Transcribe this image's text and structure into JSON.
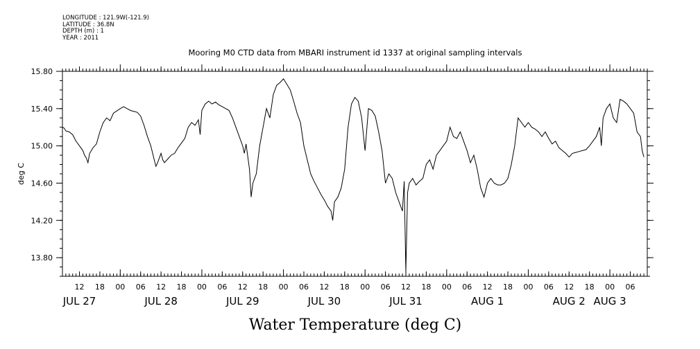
{
  "header": {
    "longitude": "LONGITUDE : 121.9W(-121.9)",
    "latitude": "LATITUDE : 36.8N",
    "depth": "DEPTH (m) : 1",
    "year": "YEAR : 2011"
  },
  "chart_data": {
    "type": "line",
    "title": "Mooring M0 CTD data from MBARI instrument id 1337 at original sampling intervals",
    "xlabel": "Water Temperature (deg C)",
    "ylabel": "deg C",
    "xlim": [
      "2011-07-27T07:00",
      "2011-08-03T11:00"
    ],
    "ylim": [
      13.6,
      15.8
    ],
    "y_ticks": [
      13.8,
      14.2,
      14.6,
      15.0,
      15.4,
      15.8
    ],
    "y_tick_labels": [
      "13.80",
      "14.20",
      "14.60",
      "15.00",
      "15.40",
      "15.80"
    ],
    "x_hour_ticks": [
      {
        "t": "2011-07-27T12:00",
        "label": "12"
      },
      {
        "t": "2011-07-27T18:00",
        "label": "18"
      },
      {
        "t": "2011-07-28T00:00",
        "label": "00"
      },
      {
        "t": "2011-07-28T06:00",
        "label": "06"
      },
      {
        "t": "2011-07-28T12:00",
        "label": "12"
      },
      {
        "t": "2011-07-28T18:00",
        "label": "18"
      },
      {
        "t": "2011-07-29T00:00",
        "label": "00"
      },
      {
        "t": "2011-07-29T06:00",
        "label": "06"
      },
      {
        "t": "2011-07-29T12:00",
        "label": "12"
      },
      {
        "t": "2011-07-29T18:00",
        "label": "18"
      },
      {
        "t": "2011-07-30T00:00",
        "label": "00"
      },
      {
        "t": "2011-07-30T06:00",
        "label": "06"
      },
      {
        "t": "2011-07-30T12:00",
        "label": "12"
      },
      {
        "t": "2011-07-30T18:00",
        "label": "18"
      },
      {
        "t": "2011-07-31T00:00",
        "label": "00"
      },
      {
        "t": "2011-07-31T06:00",
        "label": "06"
      },
      {
        "t": "2011-07-31T12:00",
        "label": "12"
      },
      {
        "t": "2011-07-31T18:00",
        "label": "18"
      },
      {
        "t": "2011-08-01T00:00",
        "label": "00"
      },
      {
        "t": "2011-08-01T06:00",
        "label": "06"
      },
      {
        "t": "2011-08-01T12:00",
        "label": "12"
      },
      {
        "t": "2011-08-01T18:00",
        "label": "18"
      },
      {
        "t": "2011-08-02T00:00",
        "label": "00"
      },
      {
        "t": "2011-08-02T06:00",
        "label": "06"
      },
      {
        "t": "2011-08-02T12:00",
        "label": "12"
      },
      {
        "t": "2011-08-02T18:00",
        "label": "18"
      },
      {
        "t": "2011-08-03T00:00",
        "label": "00"
      },
      {
        "t": "2011-08-03T06:00",
        "label": "06"
      }
    ],
    "x_day_labels": [
      {
        "t": "2011-07-27T12:00",
        "label": "JUL 27"
      },
      {
        "t": "2011-07-28T12:00",
        "label": "JUL 28"
      },
      {
        "t": "2011-07-29T12:00",
        "label": "JUL 29"
      },
      {
        "t": "2011-07-30T12:00",
        "label": "JUL 30"
      },
      {
        "t": "2011-07-31T12:00",
        "label": "JUL 31"
      },
      {
        "t": "2011-08-01T12:00",
        "label": "AUG  1"
      },
      {
        "t": "2011-08-02T12:00",
        "label": "AUG  2"
      },
      {
        "t": "2011-08-03T00:00",
        "label": "AUG  3"
      }
    ],
    "series": [
      {
        "points": [
          [
            "2011-07-27T07:00",
            15.2
          ],
          [
            "2011-07-27T07:30",
            15.19
          ],
          [
            "2011-07-27T08:00",
            15.16
          ],
          [
            "2011-07-27T09:00",
            15.15
          ],
          [
            "2011-07-27T10:00",
            15.12
          ],
          [
            "2011-07-27T11:00",
            15.05
          ],
          [
            "2011-07-27T12:00",
            15.0
          ],
          [
            "2011-07-27T13:00",
            14.95
          ],
          [
            "2011-07-27T13:30",
            14.9
          ],
          [
            "2011-07-27T14:00",
            14.87
          ],
          [
            "2011-07-27T14:30",
            14.82
          ],
          [
            "2011-07-27T15:00",
            14.92
          ],
          [
            "2011-07-27T15:30",
            14.95
          ],
          [
            "2011-07-27T16:00",
            14.98
          ],
          [
            "2011-07-27T17:00",
            15.02
          ],
          [
            "2011-07-27T18:00",
            15.15
          ],
          [
            "2011-07-27T19:00",
            15.25
          ],
          [
            "2011-07-27T20:00",
            15.3
          ],
          [
            "2011-07-27T21:00",
            15.27
          ],
          [
            "2011-07-27T22:00",
            15.35
          ],
          [
            "2011-07-28T00:00",
            15.4
          ],
          [
            "2011-07-28T01:00",
            15.42
          ],
          [
            "2011-07-28T02:00",
            15.4
          ],
          [
            "2011-07-28T03:00",
            15.38
          ],
          [
            "2011-07-28T04:00",
            15.37
          ],
          [
            "2011-07-28T05:00",
            15.36
          ],
          [
            "2011-07-28T06:00",
            15.32
          ],
          [
            "2011-07-28T07:00",
            15.22
          ],
          [
            "2011-07-28T08:00",
            15.1
          ],
          [
            "2011-07-28T09:00",
            15.0
          ],
          [
            "2011-07-28T10:00",
            14.85
          ],
          [
            "2011-07-28T10:30",
            14.78
          ],
          [
            "2011-07-28T11:00",
            14.82
          ],
          [
            "2011-07-28T12:00",
            14.92
          ],
          [
            "2011-07-28T12:30",
            14.85
          ],
          [
            "2011-07-28T13:00",
            14.82
          ],
          [
            "2011-07-28T14:00",
            14.86
          ],
          [
            "2011-07-28T15:00",
            14.9
          ],
          [
            "2011-07-28T16:00",
            14.92
          ],
          [
            "2011-07-28T17:00",
            14.98
          ],
          [
            "2011-07-28T18:00",
            15.03
          ],
          [
            "2011-07-28T19:00",
            15.08
          ],
          [
            "2011-07-28T20:00",
            15.2
          ],
          [
            "2011-07-28T21:00",
            15.25
          ],
          [
            "2011-07-28T22:00",
            15.22
          ],
          [
            "2011-07-28T23:00",
            15.28
          ],
          [
            "2011-07-28T23:30",
            15.12
          ],
          [
            "2011-07-29T00:00",
            15.38
          ],
          [
            "2011-07-29T01:00",
            15.45
          ],
          [
            "2011-07-29T02:00",
            15.48
          ],
          [
            "2011-07-29T03:00",
            15.45
          ],
          [
            "2011-07-29T04:00",
            15.47
          ],
          [
            "2011-07-29T05:00",
            15.44
          ],
          [
            "2011-07-29T06:00",
            15.42
          ],
          [
            "2011-07-29T07:00",
            15.4
          ],
          [
            "2011-07-29T08:00",
            15.38
          ],
          [
            "2011-07-29T09:00",
            15.3
          ],
          [
            "2011-07-29T10:00",
            15.2
          ],
          [
            "2011-07-29T11:00",
            15.1
          ],
          [
            "2011-07-29T12:00",
            15.0
          ],
          [
            "2011-07-29T12:30",
            14.92
          ],
          [
            "2011-07-29T13:00",
            15.02
          ],
          [
            "2011-07-29T14:00",
            14.75
          ],
          [
            "2011-07-29T14:30",
            14.45
          ],
          [
            "2011-07-29T15:00",
            14.6
          ],
          [
            "2011-07-29T16:00",
            14.7
          ],
          [
            "2011-07-29T17:00",
            15.0
          ],
          [
            "2011-07-29T18:00",
            15.2
          ],
          [
            "2011-07-29T19:00",
            15.4
          ],
          [
            "2011-07-29T20:00",
            15.3
          ],
          [
            "2011-07-29T21:00",
            15.55
          ],
          [
            "2011-07-29T22:00",
            15.65
          ],
          [
            "2011-07-29T23:00",
            15.68
          ],
          [
            "2011-07-30T00:00",
            15.72
          ],
          [
            "2011-07-30T01:00",
            15.66
          ],
          [
            "2011-07-30T02:00",
            15.6
          ],
          [
            "2011-07-30T03:00",
            15.48
          ],
          [
            "2011-07-30T04:00",
            15.35
          ],
          [
            "2011-07-30T05:00",
            15.25
          ],
          [
            "2011-07-30T06:00",
            15.0
          ],
          [
            "2011-07-30T07:00",
            14.85
          ],
          [
            "2011-07-30T08:00",
            14.7
          ],
          [
            "2011-07-30T09:00",
            14.62
          ],
          [
            "2011-07-30T10:00",
            14.55
          ],
          [
            "2011-07-30T11:00",
            14.48
          ],
          [
            "2011-07-30T12:00",
            14.42
          ],
          [
            "2011-07-30T13:00",
            14.35
          ],
          [
            "2011-07-30T14:00",
            14.3
          ],
          [
            "2011-07-30T14:30",
            14.2
          ],
          [
            "2011-07-30T15:00",
            14.4
          ],
          [
            "2011-07-30T16:00",
            14.45
          ],
          [
            "2011-07-30T17:00",
            14.55
          ],
          [
            "2011-07-30T18:00",
            14.75
          ],
          [
            "2011-07-30T19:00",
            15.2
          ],
          [
            "2011-07-30T20:00",
            15.45
          ],
          [
            "2011-07-30T21:00",
            15.52
          ],
          [
            "2011-07-30T22:00",
            15.48
          ],
          [
            "2011-07-30T23:00",
            15.3
          ],
          [
            "2011-07-31T00:00",
            14.95
          ],
          [
            "2011-07-31T01:00",
            15.4
          ],
          [
            "2011-07-31T02:00",
            15.38
          ],
          [
            "2011-07-31T03:00",
            15.32
          ],
          [
            "2011-07-31T04:00",
            15.15
          ],
          [
            "2011-07-31T05:00",
            14.95
          ],
          [
            "2011-07-31T06:00",
            14.6
          ],
          [
            "2011-07-31T07:00",
            14.7
          ],
          [
            "2011-07-31T08:00",
            14.65
          ],
          [
            "2011-07-31T09:00",
            14.5
          ],
          [
            "2011-07-31T10:00",
            14.4
          ],
          [
            "2011-07-31T11:00",
            14.3
          ],
          [
            "2011-07-31T11:30",
            14.62
          ],
          [
            "2011-07-31T12:00",
            13.65
          ],
          [
            "2011-07-31T12:30",
            14.5
          ],
          [
            "2011-07-31T13:00",
            14.6
          ],
          [
            "2011-07-31T14:00",
            14.65
          ],
          [
            "2011-07-31T15:00",
            14.58
          ],
          [
            "2011-07-31T16:00",
            14.62
          ],
          [
            "2011-07-31T17:00",
            14.65
          ],
          [
            "2011-07-31T18:00",
            14.8
          ],
          [
            "2011-07-31T19:00",
            14.85
          ],
          [
            "2011-07-31T20:00",
            14.75
          ],
          [
            "2011-07-31T21:00",
            14.9
          ],
          [
            "2011-07-31T22:00",
            14.95
          ],
          [
            "2011-07-31T23:00",
            15.0
          ],
          [
            "2011-08-01T00:00",
            15.05
          ],
          [
            "2011-08-01T01:00",
            15.2
          ],
          [
            "2011-08-01T02:00",
            15.1
          ],
          [
            "2011-08-01T03:00",
            15.08
          ],
          [
            "2011-08-01T04:00",
            15.15
          ],
          [
            "2011-08-01T05:00",
            15.05
          ],
          [
            "2011-08-01T06:00",
            14.95
          ],
          [
            "2011-08-01T07:00",
            14.82
          ],
          [
            "2011-08-01T08:00",
            14.9
          ],
          [
            "2011-08-01T09:00",
            14.75
          ],
          [
            "2011-08-01T10:00",
            14.55
          ],
          [
            "2011-08-01T11:00",
            14.45
          ],
          [
            "2011-08-01T12:00",
            14.6
          ],
          [
            "2011-08-01T13:00",
            14.65
          ],
          [
            "2011-08-01T14:00",
            14.6
          ],
          [
            "2011-08-01T15:00",
            14.58
          ],
          [
            "2011-08-01T16:00",
            14.58
          ],
          [
            "2011-08-01T17:00",
            14.6
          ],
          [
            "2011-08-01T18:00",
            14.65
          ],
          [
            "2011-08-01T19:00",
            14.8
          ],
          [
            "2011-08-01T20:00",
            15.0
          ],
          [
            "2011-08-01T21:00",
            15.3
          ],
          [
            "2011-08-01T22:00",
            15.25
          ],
          [
            "2011-08-01T23:00",
            15.2
          ],
          [
            "2011-08-02T00:00",
            15.25
          ],
          [
            "2011-08-02T01:00",
            15.2
          ],
          [
            "2011-08-02T02:00",
            15.18
          ],
          [
            "2011-08-02T03:00",
            15.15
          ],
          [
            "2011-08-02T04:00",
            15.1
          ],
          [
            "2011-08-02T05:00",
            15.15
          ],
          [
            "2011-08-02T06:00",
            15.08
          ],
          [
            "2011-08-02T07:00",
            15.02
          ],
          [
            "2011-08-02T08:00",
            15.05
          ],
          [
            "2011-08-02T09:00",
            14.98
          ],
          [
            "2011-08-02T10:00",
            14.95
          ],
          [
            "2011-08-02T11:00",
            14.92
          ],
          [
            "2011-08-02T12:00",
            14.88
          ],
          [
            "2011-08-02T13:00",
            14.92
          ],
          [
            "2011-08-02T14:00",
            14.93
          ],
          [
            "2011-08-02T15:00",
            14.94
          ],
          [
            "2011-08-02T16:00",
            14.95
          ],
          [
            "2011-08-02T17:00",
            14.96
          ],
          [
            "2011-08-02T18:00",
            15.0
          ],
          [
            "2011-08-02T19:00",
            15.05
          ],
          [
            "2011-08-02T20:00",
            15.1
          ],
          [
            "2011-08-02T21:00",
            15.2
          ],
          [
            "2011-08-02T21:30",
            15.0
          ],
          [
            "2011-08-02T22:00",
            15.3
          ],
          [
            "2011-08-02T23:00",
            15.4
          ],
          [
            "2011-08-03T00:00",
            15.45
          ],
          [
            "2011-08-03T01:00",
            15.3
          ],
          [
            "2011-08-03T02:00",
            15.25
          ],
          [
            "2011-08-03T03:00",
            15.5
          ],
          [
            "2011-08-03T04:00",
            15.48
          ],
          [
            "2011-08-03T05:00",
            15.45
          ],
          [
            "2011-08-03T06:00",
            15.4
          ],
          [
            "2011-08-03T07:00",
            15.35
          ],
          [
            "2011-08-03T08:00",
            15.15
          ],
          [
            "2011-08-03T09:00",
            15.1
          ],
          [
            "2011-08-03T09:30",
            14.95
          ],
          [
            "2011-08-03T10:00",
            14.88
          ]
        ]
      }
    ]
  }
}
